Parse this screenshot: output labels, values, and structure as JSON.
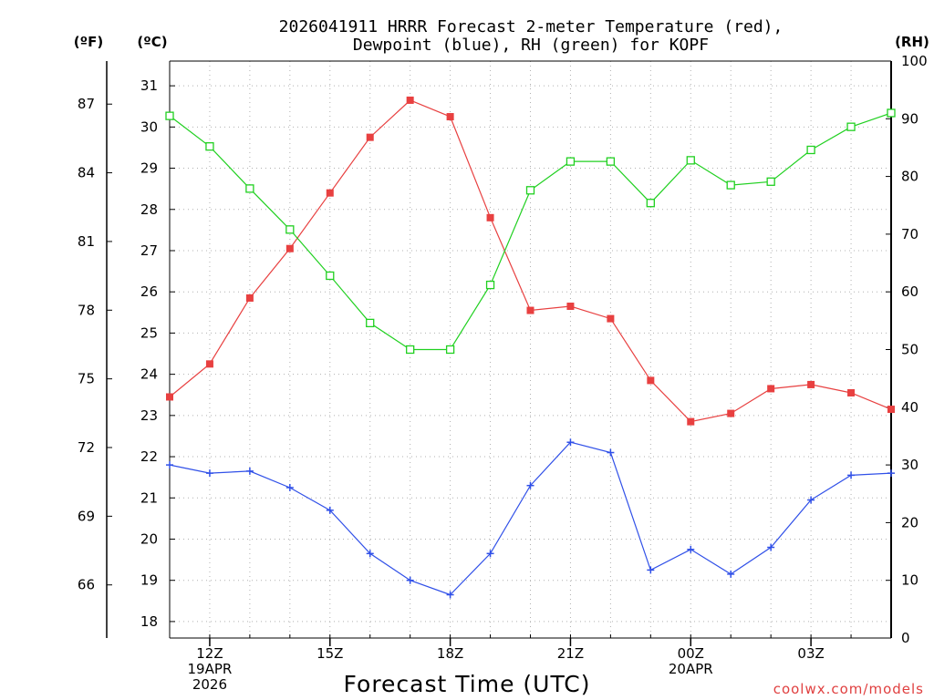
{
  "chart_data": {
    "type": "line",
    "title_line1": "2026041911 HRRR Forecast 2-meter Temperature (red),",
    "title_line2": "Dewpoint (blue), RH (green) for KOPF",
    "unit_left_f": "(ºF)",
    "unit_left_c": "(ºC)",
    "unit_right": "(RH)",
    "xlabel": "Forecast Time (UTC)",
    "credit": "coolwx.com/models",
    "colors": {
      "temperature": "#e84040",
      "dewpoint": "#3050e8",
      "rh": "#20d020"
    },
    "x_hours": [
      11,
      12,
      13,
      14,
      15,
      16,
      17,
      18,
      19,
      20,
      21,
      22,
      23,
      24,
      25,
      26,
      27,
      28,
      29
    ],
    "x_ticks": [
      {
        "hour": 12,
        "lines": [
          "12Z",
          "19APR",
          "2026"
        ]
      },
      {
        "hour": 15,
        "lines": [
          "15Z"
        ]
      },
      {
        "hour": 18,
        "lines": [
          "18Z"
        ]
      },
      {
        "hour": 21,
        "lines": [
          "21Z"
        ]
      },
      {
        "hour": 24,
        "lines": [
          "00Z",
          "20APR"
        ]
      },
      {
        "hour": 27,
        "lines": [
          "03Z"
        ]
      }
    ],
    "celsius_axis": {
      "range": [
        17.6,
        31.6
      ],
      "ticks": [
        18,
        19,
        20,
        21,
        22,
        23,
        24,
        25,
        26,
        27,
        28,
        29,
        30,
        31
      ]
    },
    "fahrenheit_ticks": [
      66,
      69,
      72,
      75,
      78,
      81,
      84,
      87
    ],
    "rh_axis": {
      "range": [
        0,
        100
      ],
      "ticks": [
        0,
        10,
        20,
        30,
        40,
        50,
        60,
        70,
        80,
        90,
        100
      ]
    },
    "series": [
      {
        "name": "Temperature",
        "units": "C",
        "values": [
          23.45,
          24.25,
          25.85,
          27.05,
          28.4,
          29.75,
          30.65,
          30.25,
          27.8,
          25.55,
          25.65,
          25.35,
          23.85,
          22.85,
          23.05,
          23.65,
          23.75,
          23.55,
          23.15
        ]
      },
      {
        "name": "Dewpoint",
        "units": "C",
        "values": [
          21.8,
          21.6,
          21.65,
          21.25,
          20.7,
          19.65,
          19.0,
          18.65,
          19.65,
          21.3,
          22.35,
          22.1,
          19.25,
          19.75,
          19.15,
          19.8,
          20.95,
          21.55,
          21.6
        ]
      },
      {
        "name": "RH",
        "units": "%",
        "values": [
          90.5,
          85.2,
          77.9,
          70.8,
          62.8,
          54.6,
          50.0,
          50.0,
          61.2,
          77.6,
          82.6,
          82.6,
          75.4,
          82.8,
          78.5,
          79.1,
          84.6,
          88.6,
          91.0
        ]
      }
    ]
  }
}
